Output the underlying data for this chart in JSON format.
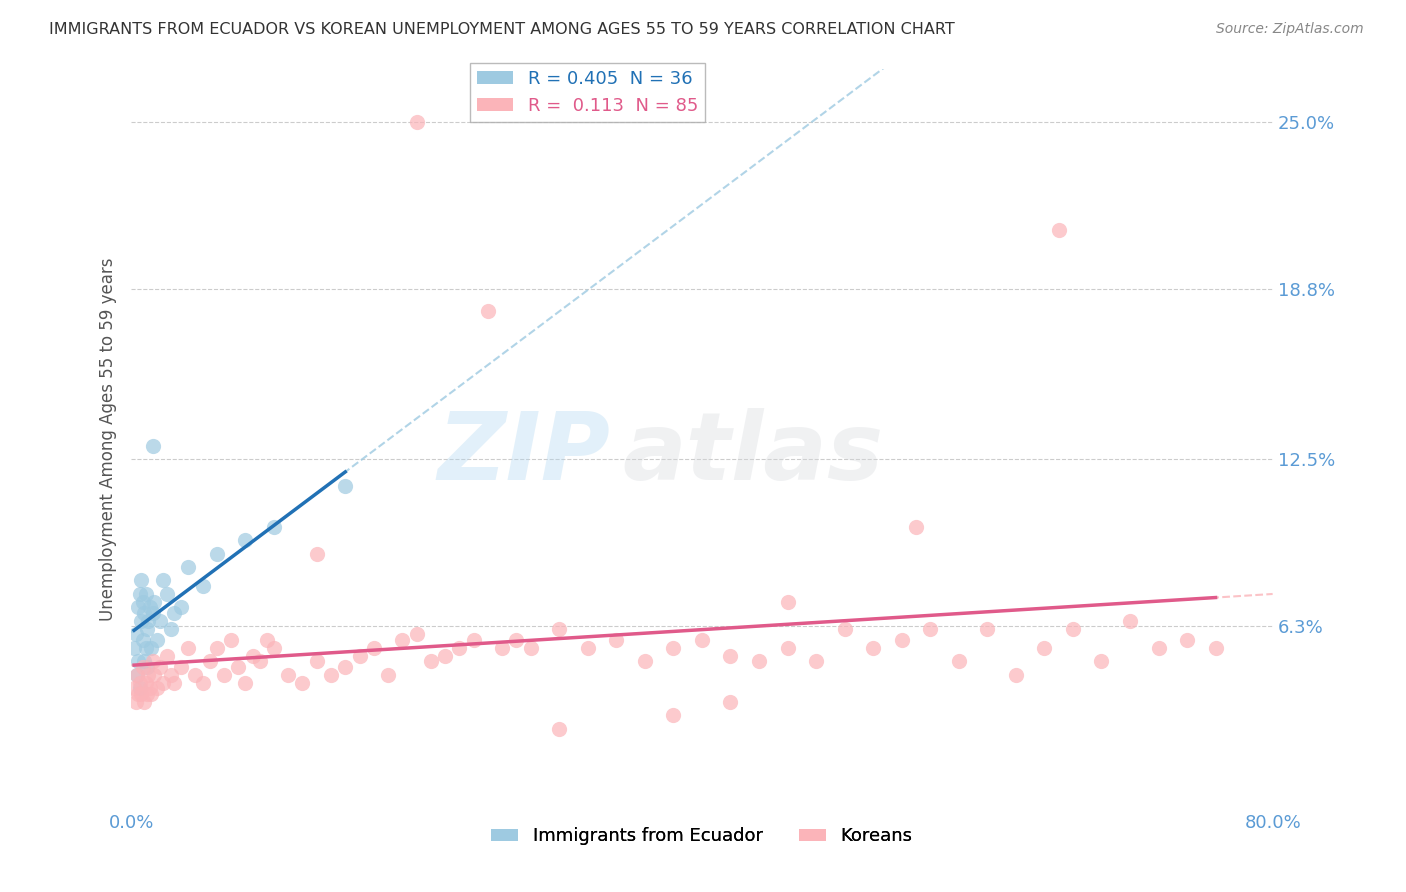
{
  "title": "IMMIGRANTS FROM ECUADOR VS KOREAN UNEMPLOYMENT AMONG AGES 55 TO 59 YEARS CORRELATION CHART",
  "source": "Source: ZipAtlas.com",
  "ylabel": "Unemployment Among Ages 55 to 59 years",
  "xlim": [
    0.0,
    0.8
  ],
  "ylim": [
    -0.005,
    0.27
  ],
  "ytick_vals": [
    0.063,
    0.125,
    0.188,
    0.25
  ],
  "ytick_labels": [
    "6.3%",
    "12.5%",
    "18.8%",
    "25.0%"
  ],
  "blue_R": 0.405,
  "blue_N": 36,
  "pink_R": 0.113,
  "pink_N": 85,
  "blue_dot_color": "#9ecae1",
  "pink_dot_color": "#fbb4b9",
  "blue_line_color": "#2171b5",
  "pink_line_color": "#e05a8a",
  "blue_dash_color": "#9ecae1",
  "pink_dash_color": "#fbb4b9",
  "legend_label_blue": "Immigrants from Ecuador",
  "legend_label_pink": "Koreans",
  "watermark": "ZIPAtlas",
  "background_color": "#ffffff",
  "grid_color": "#cccccc",
  "title_color": "#333333",
  "axis_label_color": "#555555",
  "tick_color": "#5b9bd5",
  "blue_scatter_x": [
    0.002,
    0.003,
    0.004,
    0.005,
    0.005,
    0.006,
    0.006,
    0.007,
    0.007,
    0.008,
    0.008,
    0.009,
    0.009,
    0.01,
    0.01,
    0.011,
    0.011,
    0.012,
    0.013,
    0.014,
    0.015,
    0.016,
    0.018,
    0.02,
    0.022,
    0.025,
    0.028,
    0.03,
    0.035,
    0.04,
    0.05,
    0.06,
    0.08,
    0.1,
    0.15,
    0.015
  ],
  "blue_scatter_y": [
    0.055,
    0.06,
    0.045,
    0.07,
    0.05,
    0.075,
    0.04,
    0.065,
    0.08,
    0.058,
    0.072,
    0.05,
    0.068,
    0.055,
    0.075,
    0.062,
    0.048,
    0.065,
    0.07,
    0.055,
    0.068,
    0.072,
    0.058,
    0.065,
    0.08,
    0.075,
    0.062,
    0.068,
    0.07,
    0.085,
    0.078,
    0.09,
    0.095,
    0.1,
    0.115,
    0.13
  ],
  "pink_scatter_x": [
    0.002,
    0.003,
    0.004,
    0.005,
    0.006,
    0.007,
    0.008,
    0.009,
    0.01,
    0.011,
    0.012,
    0.013,
    0.014,
    0.015,
    0.016,
    0.018,
    0.02,
    0.022,
    0.025,
    0.028,
    0.03,
    0.035,
    0.04,
    0.045,
    0.05,
    0.055,
    0.06,
    0.065,
    0.07,
    0.075,
    0.08,
    0.085,
    0.09,
    0.095,
    0.1,
    0.11,
    0.12,
    0.13,
    0.14,
    0.15,
    0.16,
    0.17,
    0.18,
    0.19,
    0.2,
    0.21,
    0.22,
    0.23,
    0.24,
    0.25,
    0.26,
    0.27,
    0.28,
    0.3,
    0.32,
    0.34,
    0.36,
    0.38,
    0.4,
    0.42,
    0.44,
    0.46,
    0.48,
    0.5,
    0.52,
    0.54,
    0.56,
    0.58,
    0.6,
    0.62,
    0.64,
    0.66,
    0.68,
    0.7,
    0.72,
    0.74,
    0.76,
    0.46,
    0.3,
    0.2,
    0.38,
    0.55,
    0.13,
    0.42,
    0.65
  ],
  "pink_scatter_y": [
    0.04,
    0.035,
    0.045,
    0.038,
    0.042,
    0.038,
    0.048,
    0.035,
    0.042,
    0.038,
    0.045,
    0.04,
    0.038,
    0.05,
    0.045,
    0.04,
    0.048,
    0.042,
    0.052,
    0.045,
    0.042,
    0.048,
    0.055,
    0.045,
    0.042,
    0.05,
    0.055,
    0.045,
    0.058,
    0.048,
    0.042,
    0.052,
    0.05,
    0.058,
    0.055,
    0.045,
    0.042,
    0.05,
    0.045,
    0.048,
    0.052,
    0.055,
    0.045,
    0.058,
    0.06,
    0.05,
    0.052,
    0.055,
    0.058,
    0.18,
    0.055,
    0.058,
    0.055,
    0.062,
    0.055,
    0.058,
    0.05,
    0.055,
    0.058,
    0.052,
    0.05,
    0.055,
    0.05,
    0.062,
    0.055,
    0.058,
    0.062,
    0.05,
    0.062,
    0.045,
    0.055,
    0.062,
    0.05,
    0.065,
    0.055,
    0.058,
    0.055,
    0.072,
    0.025,
    0.25,
    0.03,
    0.1,
    0.09,
    0.035,
    0.21
  ]
}
